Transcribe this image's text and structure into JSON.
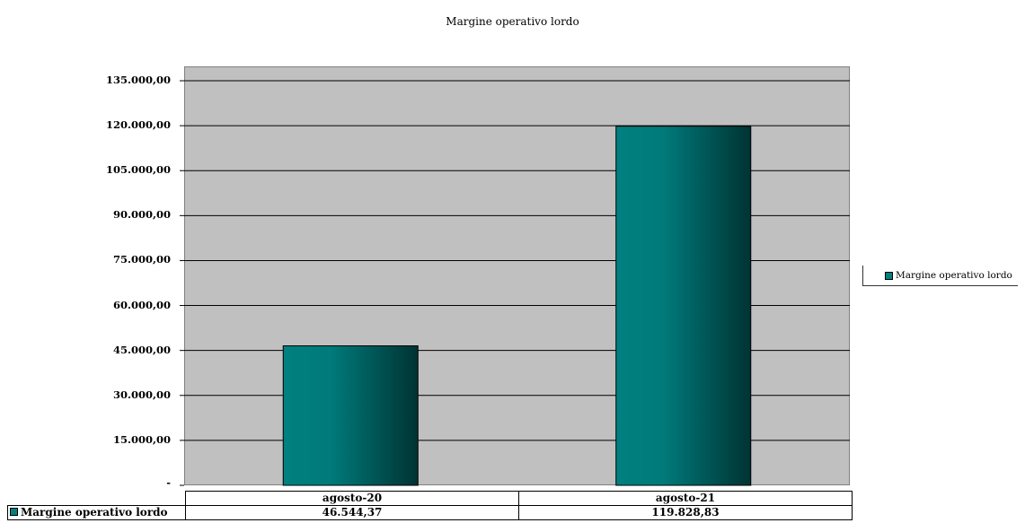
{
  "chart_data": {
    "type": "bar",
    "title": "Margine operativo lordo",
    "categories": [
      "agosto-20",
      "agosto-21"
    ],
    "series": [
      {
        "name": "Margine operativo lordo",
        "values": [
          46544.37,
          119828.83
        ],
        "color": "#008080"
      }
    ],
    "value_labels": [
      "46.544,37",
      "119.828,83"
    ],
    "ylim": [
      0,
      135000
    ],
    "yticks": [
      {
        "value": 0,
        "label": "-"
      },
      {
        "value": 15000,
        "label": "15.000,00"
      },
      {
        "value": 30000,
        "label": "30.000,00"
      },
      {
        "value": 45000,
        "label": "45.000,00"
      },
      {
        "value": 60000,
        "label": "60.000,00"
      },
      {
        "value": 75000,
        "label": "75.000,00"
      },
      {
        "value": 90000,
        "label": "90.000,00"
      },
      {
        "value": 105000,
        "label": "105.000,00"
      },
      {
        "value": 120000,
        "label": "120.000,00"
      },
      {
        "value": 135000,
        "label": "135.000,00"
      }
    ],
    "grid": true,
    "legend_position": "right",
    "plot_background": "#c0c0c0"
  }
}
